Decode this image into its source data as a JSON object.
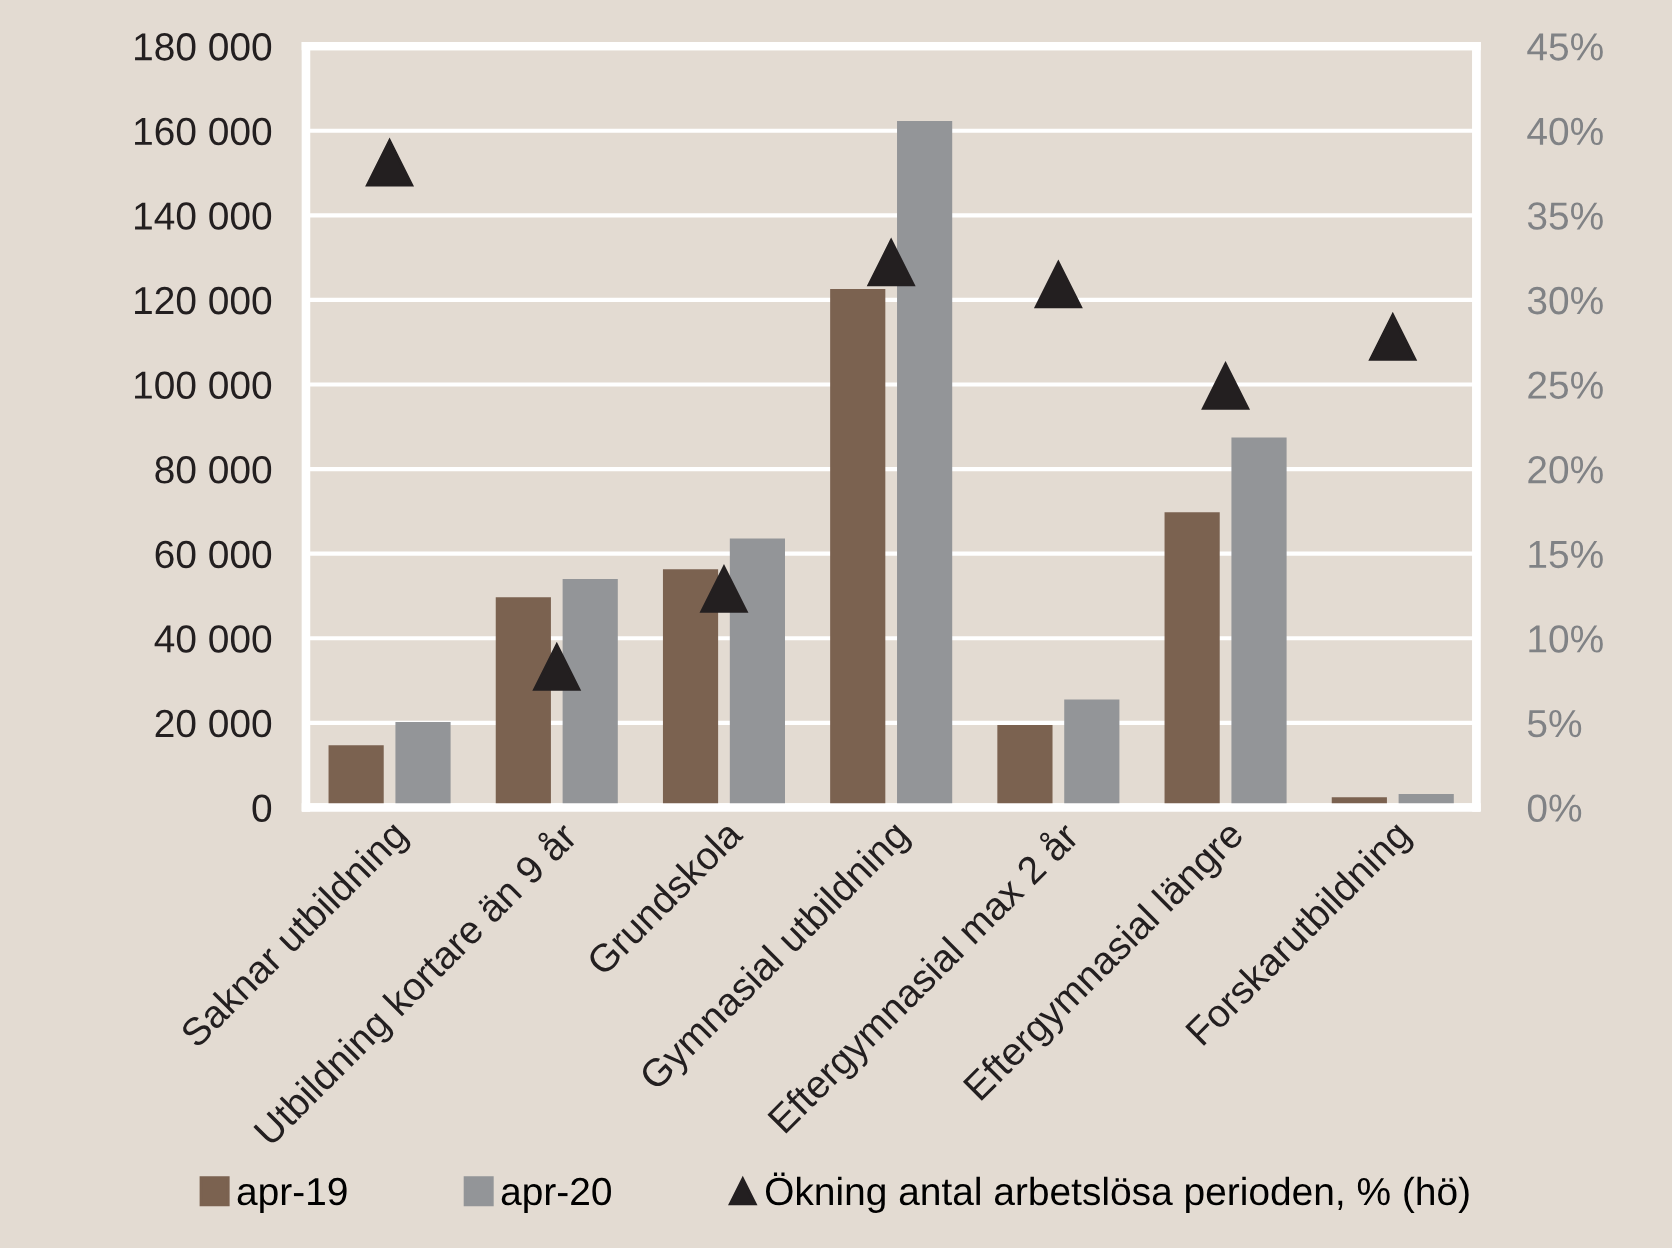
{
  "chart_data": {
    "type": "bar",
    "categories": [
      "Saknar utbildning",
      "Utbildning kortare än 9 år",
      "Grundskola",
      "Gymnasial utbildning",
      "Eftergymnasial max 2 år",
      "Eftergymnasial längre",
      "Forskarutbildning"
    ],
    "series": [
      {
        "name": "apr-19",
        "color": "#7b6250",
        "values": [
          14700,
          49700,
          56300,
          122600,
          19500,
          69800,
          2400
        ]
      },
      {
        "name": "apr-20",
        "color": "#939598",
        "values": [
          20200,
          54000,
          63600,
          162300,
          25500,
          87500,
          3200
        ]
      },
      {
        "name": "Ökning antal arbetslösa perioden, % (hö)",
        "type": "scatter",
        "axis": "y2",
        "color": "#231f20",
        "marker": "triangle",
        "values": [
          38.1,
          8.3,
          12.9,
          32.2,
          30.9,
          24.9,
          27.8
        ]
      }
    ],
    "ylim": [
      0,
      180000
    ],
    "yticks": [
      {
        "value": 0,
        "label": "0"
      },
      {
        "value": 20000,
        "label": "20 000"
      },
      {
        "value": 40000,
        "label": "40 000"
      },
      {
        "value": 60000,
        "label": "60 000"
      },
      {
        "value": 80000,
        "label": "80 000"
      },
      {
        "value": 100000,
        "label": "100 000"
      },
      {
        "value": 120000,
        "label": "120 000"
      },
      {
        "value": 140000,
        "label": "140 000"
      },
      {
        "value": 160000,
        "label": "160 000"
      },
      {
        "value": 180000,
        "label": "180 000"
      }
    ],
    "y2lim": [
      0,
      45
    ],
    "y2ticks": [
      {
        "value": 0,
        "label": "0%"
      },
      {
        "value": 5,
        "label": "5%"
      },
      {
        "value": 10,
        "label": "10%"
      },
      {
        "value": 15,
        "label": "15%"
      },
      {
        "value": 20,
        "label": "20%"
      },
      {
        "value": 25,
        "label": "25%"
      },
      {
        "value": 30,
        "label": "30%"
      },
      {
        "value": 35,
        "label": "35%"
      },
      {
        "value": 40,
        "label": "40%"
      },
      {
        "value": 45,
        "label": "45%"
      }
    ],
    "grid": true,
    "legend": "bottom"
  }
}
